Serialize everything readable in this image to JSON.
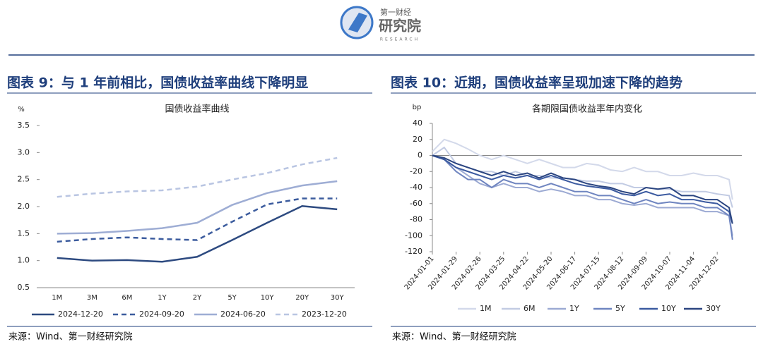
{
  "header": {
    "logo_top": "第一财经",
    "logo_main": "研究院",
    "logo_sub": "RESEARCH"
  },
  "chart_data": [
    {
      "type": "line",
      "caption": "图表 9：与 1 年前相比，国债收益率曲线下降明显",
      "title": "国债收益率曲线",
      "ylabel": "%",
      "categories": [
        "1M",
        "3M",
        "6M",
        "1Y",
        "2Y",
        "5Y",
        "10Y",
        "20Y",
        "30Y"
      ],
      "ylim": [
        0.5,
        3.5
      ],
      "yticks": [
        0.5,
        {
          "value": 1,
          "label": "1.0"
        },
        1.5,
        {
          "value": 2,
          "label": "2.0"
        },
        2.5,
        {
          "value": 3,
          "label": "3.0"
        },
        3.5
      ],
      "series": [
        {
          "name": "2024-12-20",
          "color": "#2d4a80",
          "dash": false,
          "values": [
            1.05,
            1.0,
            1.01,
            0.98,
            1.07,
            1.38,
            1.7,
            2.01,
            1.95
          ]
        },
        {
          "name": "2024-09-20",
          "color": "#3c5c9e",
          "dash": true,
          "values": [
            1.35,
            1.4,
            1.43,
            1.4,
            1.38,
            1.72,
            2.04,
            2.15,
            2.15
          ]
        },
        {
          "name": "2024-06-20",
          "color": "#9eadd4",
          "dash": false,
          "values": [
            1.5,
            1.51,
            1.55,
            1.6,
            1.7,
            2.03,
            2.25,
            2.39,
            2.47
          ]
        },
        {
          "name": "2023-12-20",
          "color": "#b9c5e2",
          "dash": true,
          "values": [
            2.18,
            2.24,
            2.28,
            2.3,
            2.37,
            2.5,
            2.62,
            2.78,
            2.9
          ]
        }
      ],
      "source": "来源：Wind、第一财经研究院"
    },
    {
      "type": "line",
      "caption": "图表 10：近期，国债收益率呈现加速下降的趋势",
      "title": "各期限国债收益率年内变化",
      "ylabel": "bp",
      "x": [
        "2024-01-01",
        "2024-01-15",
        "2024-01-29",
        "2024-02-12",
        "2024-02-26",
        "2024-03-11",
        "2024-03-25",
        "2024-04-08",
        "2024-04-22",
        "2024-05-06",
        "2024-05-20",
        "2024-06-03",
        "2024-06-17",
        "2024-07-01",
        "2024-07-15",
        "2024-07-29",
        "2024-08-12",
        "2024-08-26",
        "2024-09-09",
        "2024-09-23",
        "2024-10-07",
        "2024-10-21",
        "2024-11-04",
        "2024-11-18",
        "2024-12-02",
        "2024-12-16",
        "2024-12-20"
      ],
      "xlim": [
        "2024-01-01",
        "2024-12-31"
      ],
      "xticks": [
        "2024-01-01",
        "2024-01-29",
        "2024-02-26",
        "2024-03-25",
        "2024-04-22",
        "2024-05-20",
        "2024-06-17",
        "2024-07-15",
        "2024-08-12",
        "2024-09-09",
        "2024-10-07",
        "2024-11-04",
        "2024-12-02"
      ],
      "ylim": [
        -120,
        40
      ],
      "yticks": [
        -120,
        -100,
        -80,
        -60,
        -40,
        -20,
        0,
        20,
        40
      ],
      "series": [
        {
          "name": "1M",
          "color": "#d3d9ea",
          "values": [
            5,
            20,
            15,
            8,
            0,
            -5,
            0,
            -5,
            -10,
            -5,
            -10,
            -15,
            -15,
            -10,
            -12,
            -18,
            -20,
            -15,
            -20,
            -20,
            -25,
            -25,
            -22,
            -25,
            -25,
            -30,
            -55
          ]
        },
        {
          "name": "6M",
          "color": "#c2cbe3",
          "values": [
            0,
            10,
            -10,
            -15,
            -20,
            -20,
            -25,
            -20,
            -25,
            -25,
            -28,
            -28,
            -30,
            -32,
            -32,
            -35,
            -35,
            -40,
            -40,
            -42,
            -42,
            -45,
            -45,
            -45,
            -48,
            -50,
            -65
          ]
        },
        {
          "name": "1Y",
          "color": "#9caad3",
          "values": [
            0,
            -5,
            -15,
            -25,
            -35,
            -40,
            -35,
            -40,
            -40,
            -45,
            -42,
            -45,
            -50,
            -50,
            -55,
            -55,
            -60,
            -62,
            -60,
            -65,
            -65,
            -65,
            -65,
            -70,
            -70,
            -75,
            -100
          ]
        },
        {
          "name": "5Y",
          "color": "#6f85c0",
          "values": [
            0,
            -5,
            -20,
            -30,
            -30,
            -40,
            -30,
            -35,
            -35,
            -40,
            -35,
            -40,
            -45,
            -45,
            -50,
            -50,
            -55,
            -60,
            -55,
            -60,
            -58,
            -60,
            -60,
            -65,
            -65,
            -75,
            -105
          ]
        },
        {
          "name": "10Y",
          "color": "#3b5aa0",
          "values": [
            0,
            -5,
            -15,
            -20,
            -25,
            -30,
            -25,
            -28,
            -25,
            -30,
            -25,
            -30,
            -35,
            -38,
            -40,
            -42,
            -48,
            -50,
            -45,
            -50,
            -48,
            -55,
            -55,
            -58,
            -60,
            -70,
            -85
          ]
        },
        {
          "name": "30Y",
          "color": "#2b4580",
          "values": [
            0,
            -3,
            -10,
            -15,
            -20,
            -25,
            -20,
            -25,
            -22,
            -28,
            -22,
            -28,
            -30,
            -35,
            -38,
            -40,
            -45,
            -48,
            -40,
            -42,
            -40,
            -50,
            -50,
            -55,
            -55,
            -65,
            -85
          ]
        }
      ],
      "source": "来源：Wind、第一财经研究院"
    }
  ]
}
